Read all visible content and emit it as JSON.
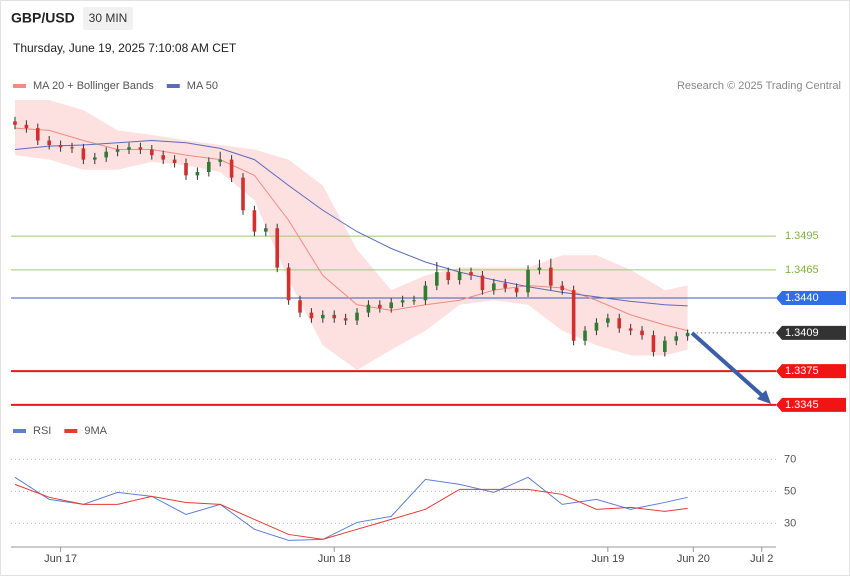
{
  "header": {
    "symbol": "GBP/USD",
    "interval": "30 MIN",
    "datetime": "Thursday, June 19, 2025 7:10:08 AM CET",
    "credit": "Research © 2025 Trading Central"
  },
  "chart_data": [
    {
      "type": "candlestick",
      "xlim": [
        -0.35,
        66.75
      ],
      "ylim": [
        1.3336,
        1.3616
      ],
      "up_color": "#2e7d32",
      "down_color": "#d32f2f",
      "x": [
        0,
        1,
        2,
        3,
        4,
        5,
        6,
        7,
        8,
        9,
        10,
        11,
        12,
        13,
        14,
        15,
        16,
        17,
        18,
        19,
        20,
        21,
        22,
        23,
        24,
        25,
        26,
        27,
        28,
        29,
        30,
        31,
        32,
        33,
        34,
        35,
        36,
        37,
        38,
        39,
        40,
        41,
        42,
        43,
        44,
        45,
        46,
        47,
        48,
        49,
        50,
        51,
        52,
        53,
        54,
        55,
        56,
        57,
        58,
        59
      ],
      "open": [
        1.3597,
        1.3594,
        1.3591,
        1.358,
        1.3576,
        1.3574,
        1.3573,
        1.3563,
        1.3565,
        1.357,
        1.3572,
        1.3574,
        1.3572,
        1.3567,
        1.3563,
        1.356,
        1.3549,
        1.3552,
        1.3561,
        1.3563,
        1.3547,
        1.3518,
        1.3499,
        1.3502,
        1.3467,
        1.3438,
        1.3427,
        1.3422,
        1.3425,
        1.3422,
        1.342,
        1.3427,
        1.3434,
        1.3431,
        1.3436,
        1.3438,
        1.3438,
        1.3451,
        1.3463,
        1.3456,
        1.3463,
        1.346,
        1.3447,
        1.3453,
        1.3449,
        1.3445,
        1.3465,
        1.3467,
        1.3451,
        1.3447,
        1.3402,
        1.3411,
        1.3418,
        1.3422,
        1.3413,
        1.3411,
        1.3407,
        1.3392,
        1.3402,
        1.3406
      ],
      "high": [
        1.3601,
        1.3598,
        1.3595,
        1.3584,
        1.358,
        1.3578,
        1.3577,
        1.3569,
        1.3574,
        1.3576,
        1.3578,
        1.3578,
        1.3576,
        1.3571,
        1.3567,
        1.3564,
        1.3556,
        1.3565,
        1.357,
        1.3567,
        1.3551,
        1.3522,
        1.3506,
        1.3506,
        1.3471,
        1.3442,
        1.3431,
        1.3429,
        1.3429,
        1.3426,
        1.3431,
        1.3438,
        1.3438,
        1.344,
        1.3442,
        1.3442,
        1.3455,
        1.3472,
        1.3467,
        1.3467,
        1.3467,
        1.3464,
        1.3457,
        1.3457,
        1.3453,
        1.3469,
        1.3474,
        1.3475,
        1.3455,
        1.3451,
        1.3415,
        1.3422,
        1.3426,
        1.3426,
        1.3417,
        1.3415,
        1.3411,
        1.3406,
        1.341,
        1.3412
      ],
      "low": [
        1.359,
        1.3587,
        1.3576,
        1.3572,
        1.357,
        1.3569,
        1.3559,
        1.3559,
        1.3561,
        1.3566,
        1.3568,
        1.3568,
        1.3563,
        1.3559,
        1.3556,
        1.3545,
        1.3545,
        1.3548,
        1.3557,
        1.3543,
        1.3514,
        1.3495,
        1.3495,
        1.3463,
        1.3434,
        1.3423,
        1.3418,
        1.3418,
        1.3418,
        1.3416,
        1.3416,
        1.3423,
        1.3427,
        1.3427,
        1.3432,
        1.3434,
        1.3434,
        1.3447,
        1.3452,
        1.3452,
        1.3456,
        1.3443,
        1.3443,
        1.3445,
        1.3441,
        1.3441,
        1.3461,
        1.3447,
        1.3443,
        1.3398,
        1.3398,
        1.3407,
        1.3414,
        1.3409,
        1.3407,
        1.3403,
        1.3388,
        1.3388,
        1.3398,
        1.3402
      ],
      "close": [
        1.3594,
        1.3591,
        1.358,
        1.3576,
        1.3574,
        1.3573,
        1.3563,
        1.3565,
        1.357,
        1.3572,
        1.3574,
        1.3572,
        1.3567,
        1.3563,
        1.356,
        1.3549,
        1.3552,
        1.3561,
        1.3563,
        1.3547,
        1.3518,
        1.3499,
        1.3502,
        1.3467,
        1.3438,
        1.3427,
        1.3422,
        1.3425,
        1.3422,
        1.342,
        1.3427,
        1.3434,
        1.3431,
        1.3436,
        1.3438,
        1.3438,
        1.3451,
        1.3463,
        1.3456,
        1.3463,
        1.346,
        1.3447,
        1.3453,
        1.3449,
        1.3445,
        1.3465,
        1.3467,
        1.3451,
        1.3447,
        1.3402,
        1.3411,
        1.3418,
        1.3422,
        1.3413,
        1.3411,
        1.3407,
        1.3392,
        1.3402,
        1.3406,
        1.3409
      ],
      "series": [
        {
          "name": "MA 20 + Bollinger Bands",
          "color": "#f28b82",
          "band_color": "#fde0e0",
          "x": [
            0,
            3,
            6,
            9,
            12,
            15,
            18,
            21,
            24,
            27,
            30,
            33,
            36,
            39,
            42,
            45,
            48,
            51,
            54,
            57,
            59
          ],
          "values": [
            1.3591,
            1.3589,
            1.358,
            1.3572,
            1.3572,
            1.3567,
            1.3563,
            1.3549,
            1.3509,
            1.346,
            1.3434,
            1.3429,
            1.3434,
            1.3438,
            1.3447,
            1.3451,
            1.3449,
            1.3438,
            1.3425,
            1.3416,
            1.3411
          ],
          "band_upper": [
            1.3616,
            1.3616,
            1.3607,
            1.3589,
            1.3585,
            1.358,
            1.3576,
            1.3572,
            1.3563,
            1.354,
            1.3483,
            1.3447,
            1.346,
            1.3467,
            1.3467,
            1.3467,
            1.3478,
            1.3478,
            1.3465,
            1.3447,
            1.3451
          ],
          "band_lower": [
            1.3567,
            1.3563,
            1.3554,
            1.3554,
            1.3561,
            1.3558,
            1.3552,
            1.3527,
            1.3456,
            1.3398,
            1.3376,
            1.3394,
            1.3411,
            1.3434,
            1.3438,
            1.3434,
            1.3411,
            1.3398,
            1.3389,
            1.3389,
            1.3394
          ]
        },
        {
          "name": "MA 50",
          "color": "#5c6bc0",
          "x": [
            0,
            3,
            6,
            9,
            12,
            15,
            18,
            21,
            24,
            27,
            30,
            33,
            36,
            39,
            42,
            45,
            48,
            51,
            54,
            57,
            59
          ],
          "values": [
            1.3572,
            1.3575,
            1.3576,
            1.3578,
            1.358,
            1.3578,
            1.3573,
            1.3563,
            1.354,
            1.3518,
            1.3499,
            1.3484,
            1.3472,
            1.3463,
            1.3456,
            1.345,
            1.3445,
            1.3441,
            1.3437,
            1.3434,
            1.3433
          ]
        }
      ],
      "levels": [
        {
          "value": 1.3495,
          "color": "#9ccc65",
          "style": "thin",
          "boxed": false
        },
        {
          "value": 1.3465,
          "color": "#9ccc65",
          "style": "thin",
          "boxed": false
        },
        {
          "value": 1.344,
          "label": "1.3440",
          "color": "#3b5fc0",
          "box_color": "#2f6ee8",
          "style": "solid",
          "boxed": true
        },
        {
          "value": 1.3409,
          "color": "#777777",
          "box_color": "#333333",
          "style": "dotted",
          "boxed": true
        },
        {
          "value": 1.3375,
          "color": "#e61919",
          "box_color": "#f01414",
          "style": "thick",
          "boxed": true
        },
        {
          "value": 1.3345,
          "color": "#e61919",
          "box_color": "#f01414",
          "style": "thick",
          "boxed": true
        }
      ]
    },
    {
      "type": "line",
      "xlim": [
        -0.35,
        66.75
      ],
      "ylim": [
        17,
        79
      ],
      "yticks": [
        30,
        50,
        70
      ],
      "grid": true,
      "xticks": [
        {
          "value": 4,
          "label": "Jun 17"
        },
        {
          "value": 28,
          "label": "Jun 18"
        },
        {
          "value": 52,
          "label": "Jun 19"
        },
        {
          "value": 59.5,
          "label": "Jun 20"
        },
        {
          "value": 65.5,
          "label": "Jul 2"
        }
      ],
      "series": [
        {
          "name": "RSI",
          "color": "#5b7fd6",
          "x": [
            0,
            3,
            6,
            9,
            12,
            15,
            18,
            21,
            24,
            27,
            30,
            33,
            36,
            39,
            42,
            45,
            48,
            51,
            54,
            57,
            59
          ],
          "values": [
            58.8,
            45,
            41.9,
            49.4,
            46.9,
            35.6,
            41.9,
            26.3,
            19.4,
            20,
            30.6,
            34.4,
            57.5,
            54.4,
            49.4,
            58.8,
            41.9,
            45,
            38.8,
            43.1,
            46.3
          ]
        },
        {
          "name": "9MA",
          "color": "#e53935",
          "x": [
            0,
            3,
            6,
            9,
            12,
            15,
            18,
            21,
            24,
            27,
            30,
            33,
            36,
            39,
            42,
            45,
            48,
            51,
            54,
            57,
            59
          ],
          "values": [
            54.4,
            46.3,
            41.9,
            41.9,
            46.9,
            43.1,
            41.9,
            32.5,
            23.1,
            20,
            26.3,
            32.5,
            38.8,
            51.3,
            51.3,
            51.3,
            48.1,
            38.8,
            40,
            37.5,
            39.4
          ]
        }
      ]
    }
  ]
}
